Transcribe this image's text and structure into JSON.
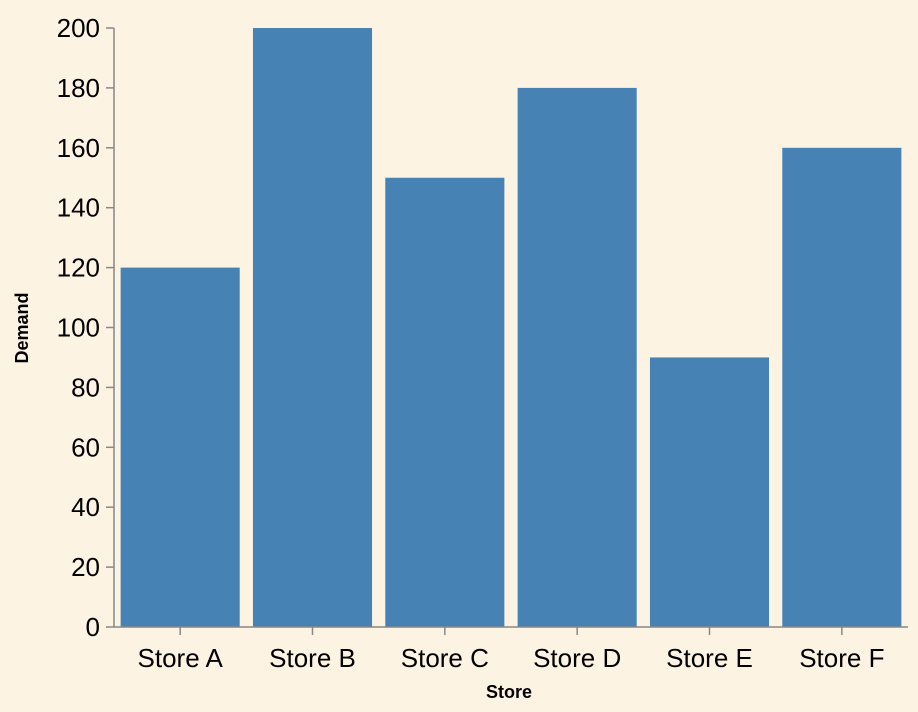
{
  "colors": {
    "background": "#fdf3e3",
    "bar": "#4682b4",
    "axis": "#888888"
  },
  "chart_data": {
    "type": "bar",
    "categories": [
      "Store A",
      "Store B",
      "Store C",
      "Store D",
      "Store E",
      "Store F"
    ],
    "values": [
      120,
      200,
      150,
      180,
      90,
      160
    ],
    "xlabel": "Store",
    "ylabel": "Demand",
    "ylim": [
      0,
      200
    ],
    "yticks": [
      0,
      20,
      40,
      60,
      80,
      100,
      120,
      140,
      160,
      180,
      200
    ],
    "grid": false
  }
}
